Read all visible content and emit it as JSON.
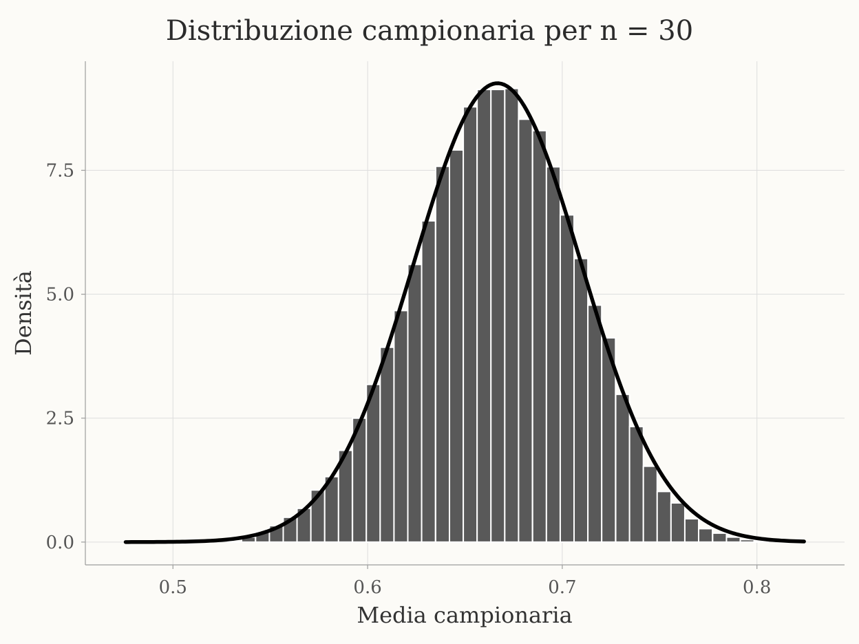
{
  "chart_data": {
    "type": "bar",
    "title": "Distribuzione campionaria per n = 30",
    "xlabel": "Media campionaria",
    "ylabel": "Densità",
    "xlim": [
      0.455,
      0.845
    ],
    "ylim": [
      -0.46,
      9.7
    ],
    "x_ticks": [
      {
        "value": 0.5,
        "label": "0.5"
      },
      {
        "value": 0.6,
        "label": "0.6"
      },
      {
        "value": 0.7,
        "label": "0.7"
      },
      {
        "value": 0.8,
        "label": "0.8"
      }
    ],
    "y_ticks": [
      {
        "value": 0,
        "label": "0.0"
      },
      {
        "value": 2.5,
        "label": "2.5"
      },
      {
        "value": 5,
        "label": "5.0"
      },
      {
        "value": 7.5,
        "label": "7.5"
      }
    ],
    "grid": true,
    "bar_width": 0.0071,
    "bars": [
      {
        "x": 0.5317,
        "y": 0.01
      },
      {
        "x": 0.5388,
        "y": 0.1
      },
      {
        "x": 0.546,
        "y": 0.2
      },
      {
        "x": 0.5531,
        "y": 0.33
      },
      {
        "x": 0.5602,
        "y": 0.5
      },
      {
        "x": 0.5673,
        "y": 0.68
      },
      {
        "x": 0.5744,
        "y": 1.05
      },
      {
        "x": 0.5815,
        "y": 1.32
      },
      {
        "x": 0.5886,
        "y": 1.85
      },
      {
        "x": 0.5958,
        "y": 2.5
      },
      {
        "x": 0.6029,
        "y": 3.18
      },
      {
        "x": 0.61,
        "y": 3.93
      },
      {
        "x": 0.6171,
        "y": 4.67
      },
      {
        "x": 0.6242,
        "y": 5.6
      },
      {
        "x": 0.6313,
        "y": 6.48
      },
      {
        "x": 0.6385,
        "y": 7.58
      },
      {
        "x": 0.6456,
        "y": 7.91
      },
      {
        "x": 0.6527,
        "y": 8.78
      },
      {
        "x": 0.6598,
        "y": 9.13
      },
      {
        "x": 0.6669,
        "y": 9.13
      },
      {
        "x": 0.674,
        "y": 9.15
      },
      {
        "x": 0.6811,
        "y": 8.53
      },
      {
        "x": 0.6883,
        "y": 8.3
      },
      {
        "x": 0.6954,
        "y": 7.57
      },
      {
        "x": 0.7025,
        "y": 6.6
      },
      {
        "x": 0.7096,
        "y": 5.72
      },
      {
        "x": 0.7167,
        "y": 4.78
      },
      {
        "x": 0.7238,
        "y": 4.12
      },
      {
        "x": 0.731,
        "y": 2.98
      },
      {
        "x": 0.7381,
        "y": 2.33
      },
      {
        "x": 0.7452,
        "y": 1.53
      },
      {
        "x": 0.7523,
        "y": 1.02
      },
      {
        "x": 0.7594,
        "y": 0.79
      },
      {
        "x": 0.7665,
        "y": 0.47
      },
      {
        "x": 0.7736,
        "y": 0.27
      },
      {
        "x": 0.7808,
        "y": 0.18
      },
      {
        "x": 0.7879,
        "y": 0.1
      },
      {
        "x": 0.795,
        "y": 0.05
      },
      {
        "x": 0.8021,
        "y": 0.02
      }
    ],
    "curve": {
      "type": "normal_density",
      "mean": 0.6667,
      "sd": 0.0431,
      "x_range": [
        0.4757,
        0.8242
      ]
    },
    "colors": {
      "background": "#fcfbf7",
      "bar_fill": "#595959",
      "bar_outline": "#ffffff",
      "curve": "#000000",
      "grid": "#dddddd"
    }
  }
}
